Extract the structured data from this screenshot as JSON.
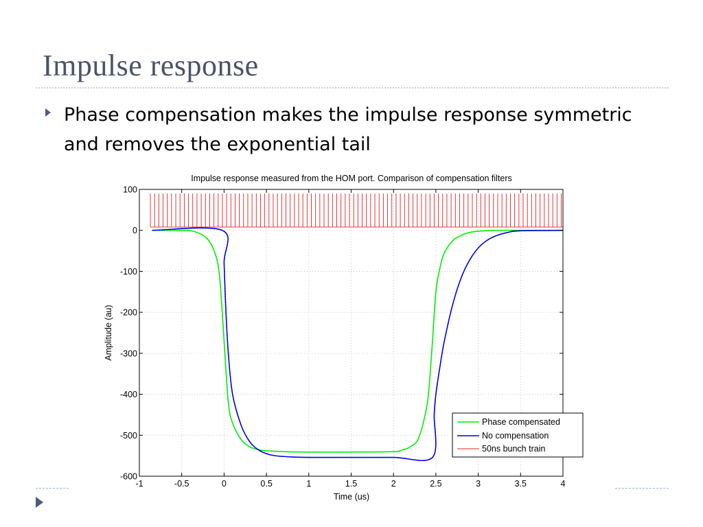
{
  "slide": {
    "title": "Impulse response",
    "bullet": "Phase compensation makes the impulse response symmetric and removes the exponential tail"
  },
  "colors": {
    "phase_compensated": "#00ee00",
    "no_compensation": "#0000dd",
    "bunch_train": "#e02020",
    "title": "#4a5468",
    "accent": "#4a5c7e"
  },
  "chart_data": {
    "type": "line",
    "title": "Impulse response measured from the HOM port. Comparison of compensation filters",
    "xlabel": "Time (us)",
    "ylabel": "Amplitude (au)",
    "xlim": [
      -1,
      4
    ],
    "ylim": [
      -600,
      100
    ],
    "xticks": [
      "-1",
      "-0.5",
      "0",
      "0.5",
      "1",
      "1.5",
      "2",
      "2.5",
      "3",
      "3.5",
      "4"
    ],
    "yticks": [
      "100",
      "0",
      "-100",
      "-200",
      "-300",
      "-400",
      "-500",
      "-600"
    ],
    "grid": true,
    "legend_position": "bottom-right",
    "series": [
      {
        "name": "Phase compensated",
        "color": "#00ee00",
        "x": [
          -0.85,
          -0.5,
          -0.35,
          -0.2,
          -0.1,
          -0.05,
          0,
          0.05,
          0.1,
          0.2,
          0.3,
          0.4,
          0.5,
          0.7,
          1.0,
          1.5,
          2.0,
          2.1,
          2.2,
          2.3,
          2.4,
          2.45,
          2.5,
          2.55,
          2.6,
          2.7,
          2.8,
          2.9,
          3.0,
          3.2,
          3.5,
          4.0
        ],
        "y": [
          0,
          0,
          -3,
          -20,
          -60,
          -120,
          -270,
          -420,
          -470,
          -510,
          -528,
          -535,
          -538,
          -540,
          -541,
          -541,
          -540,
          -536,
          -528,
          -505,
          -420,
          -300,
          -150,
          -90,
          -55,
          -25,
          -12,
          -5,
          -2,
          0,
          0,
          0
        ]
      },
      {
        "name": "No compensation",
        "color": "#0000dd",
        "x": [
          -0.85,
          -0.02,
          0,
          0.02,
          0.05,
          0.1,
          0.2,
          0.3,
          0.4,
          0.5,
          0.6,
          0.8,
          1.0,
          1.5,
          2.0,
          2.46,
          2.48,
          2.5,
          2.55,
          2.6,
          2.7,
          2.8,
          2.9,
          3.0,
          3.1,
          3.2,
          3.35,
          3.5,
          4.0
        ],
        "y": [
          0,
          0,
          -80,
          -190,
          -300,
          -400,
          -475,
          -515,
          -535,
          -545,
          -550,
          -553,
          -554,
          -554,
          -554,
          -554,
          -450,
          -400,
          -330,
          -270,
          -180,
          -115,
          -72,
          -43,
          -25,
          -14,
          -5,
          -1,
          0
        ]
      },
      {
        "name": "50ns bunch train",
        "color": "#e02020",
        "type": "pulse-train",
        "x_start": -0.87,
        "x_end": 3.97,
        "period": 0.05,
        "baseline": 8,
        "peak": 90
      }
    ]
  }
}
